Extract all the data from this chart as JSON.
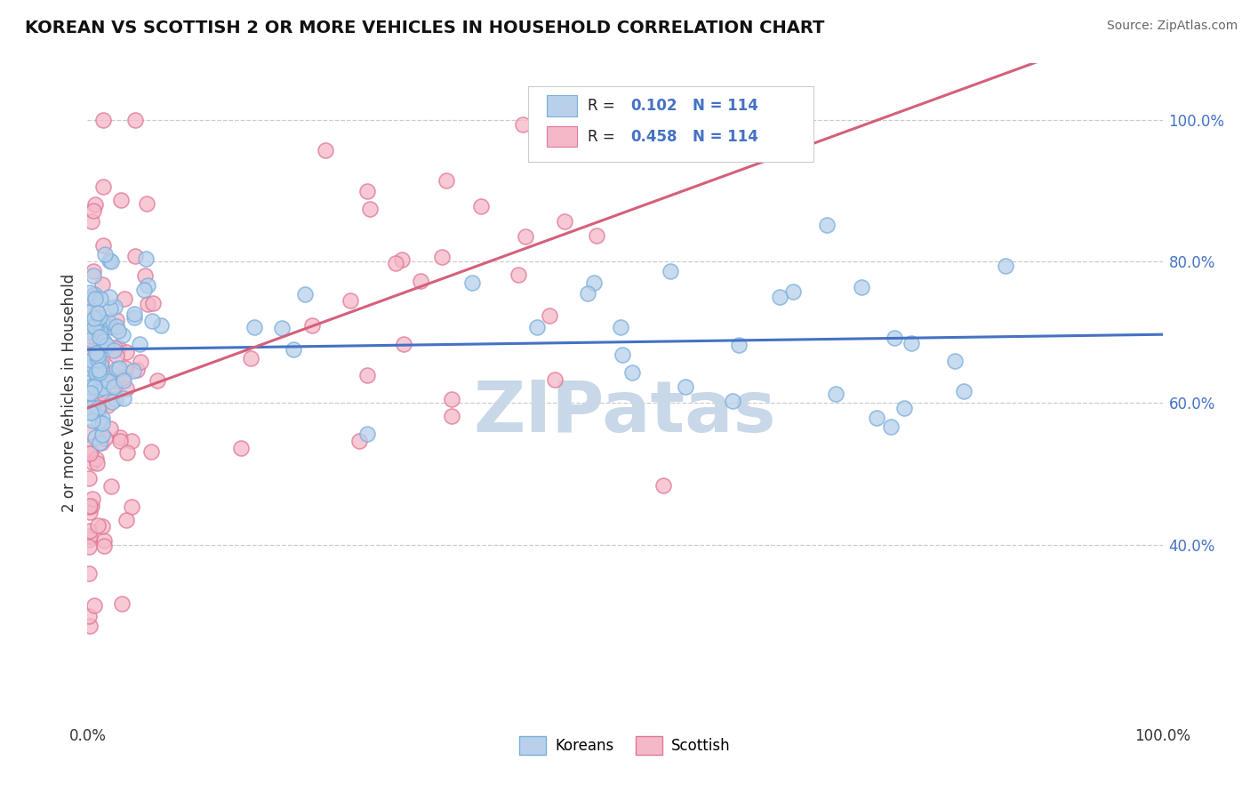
{
  "title": "KOREAN VS SCOTTISH 2 OR MORE VEHICLES IN HOUSEHOLD CORRELATION CHART",
  "source": "Source: ZipAtlas.com",
  "ylabel": "2 or more Vehicles in Household",
  "legend_label_1": "Koreans",
  "legend_label_2": "Scottish",
  "R1": 0.102,
  "N1": 114,
  "R2": 0.458,
  "N2": 114,
  "color_korean_face": "#b8d0ea",
  "color_korean_edge": "#7aafdc",
  "color_scottish_face": "#f5b8c8",
  "color_scottish_edge": "#e07898",
  "color_line_korean": "#4472c4",
  "color_line_scottish": "#d4607a",
  "background_color": "#ffffff",
  "watermark_text": "ZIPatas",
  "watermark_color": "#c8d8e8",
  "yticks": [
    40,
    60,
    80,
    100
  ],
  "yticklabels": [
    "40.0%",
    "60.0%",
    "80.0%",
    "100.0%"
  ],
  "xlim": [
    0,
    100
  ],
  "ylim": [
    15,
    108
  ]
}
